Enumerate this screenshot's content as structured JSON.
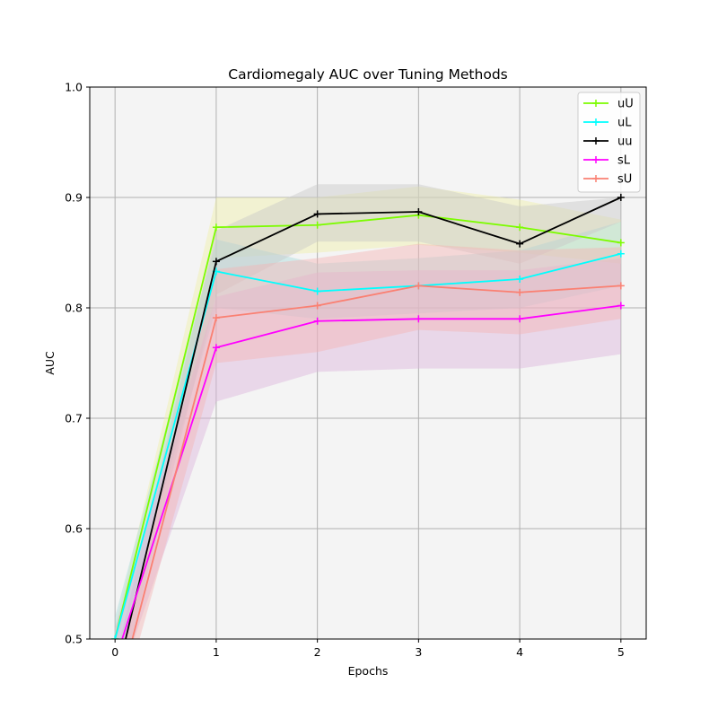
{
  "chart_data": {
    "type": "line",
    "title": "Cardiomegaly AUC over Tuning Methods",
    "xlabel": "Epochs",
    "ylabel": "AUC",
    "xlim": [
      -0.25,
      5.25
    ],
    "ylim": [
      0.5,
      1.0
    ],
    "xticks": [
      0,
      1,
      2,
      3,
      4,
      5
    ],
    "xtick_labels": [
      "0",
      "1",
      "2",
      "3",
      "4",
      "5"
    ],
    "yticks": [
      0.5,
      0.6,
      0.7,
      0.8,
      0.9,
      1.0
    ],
    "ytick_labels": [
      "0.5",
      "0.6",
      "0.7",
      "0.8",
      "0.9",
      "1.0"
    ],
    "grid": true,
    "legend_position": "top-right",
    "x": [
      0,
      1,
      2,
      3,
      4,
      5
    ],
    "series": [
      {
        "name": "uU",
        "color": "#7cfc00",
        "values": [
          0.5,
          0.873,
          0.875,
          0.884,
          0.873,
          0.859
        ],
        "band_low": [
          0.49,
          0.845,
          0.85,
          0.857,
          0.85,
          0.84
        ],
        "band_high": [
          0.51,
          0.9,
          0.9,
          0.91,
          0.898,
          0.88
        ],
        "band_color": "#f0f0a8"
      },
      {
        "name": "uL",
        "color": "#00ffff",
        "values": [
          0.5,
          0.833,
          0.815,
          0.82,
          0.826,
          0.849
        ],
        "band_low": [
          0.48,
          0.8,
          0.79,
          0.795,
          0.8,
          0.82
        ],
        "band_high": [
          0.52,
          0.862,
          0.84,
          0.845,
          0.852,
          0.878
        ],
        "band_color": "#a8dcdc"
      },
      {
        "name": "uu",
        "color": "#000000",
        "values": [
          0.46,
          0.842,
          0.885,
          0.887,
          0.858,
          0.9
        ],
        "band_low": [
          0.44,
          0.812,
          0.86,
          0.86,
          0.84,
          0.878
        ],
        "band_high": [
          0.48,
          0.87,
          0.912,
          0.912,
          0.892,
          0.9
        ],
        "band_color": "#c8c8c8"
      },
      {
        "name": "sL",
        "color": "#ff00ff",
        "values": [
          0.48,
          0.764,
          0.788,
          0.79,
          0.79,
          0.802
        ],
        "band_low": [
          0.45,
          0.715,
          0.742,
          0.745,
          0.745,
          0.758
        ],
        "band_high": [
          0.51,
          0.81,
          0.832,
          0.834,
          0.834,
          0.845
        ],
        "band_color": "#dcb4dc"
      },
      {
        "name": "sU",
        "color": "#fa8072",
        "values": [
          0.44,
          0.791,
          0.802,
          0.82,
          0.814,
          0.82
        ],
        "band_low": [
          0.42,
          0.75,
          0.76,
          0.78,
          0.776,
          0.79
        ],
        "band_high": [
          0.46,
          0.835,
          0.845,
          0.858,
          0.852,
          0.855
        ],
        "band_color": "#f4b4b4"
      }
    ]
  }
}
